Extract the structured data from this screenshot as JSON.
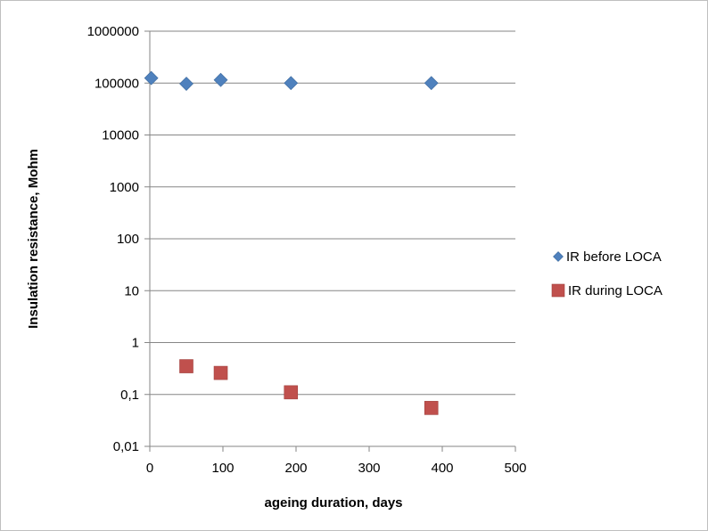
{
  "chart_data": {
    "type": "scatter",
    "xlabel": "ageing duration, days",
    "ylabel": "Insulation resistance, Mohm",
    "x_ticks": [
      "0",
      "100",
      "200",
      "300",
      "400",
      "500"
    ],
    "y_ticks": [
      "0,01",
      "0,1",
      "1",
      "10",
      "100",
      "1000",
      "10000",
      "100000",
      "1000000"
    ],
    "xlim": [
      0,
      500
    ],
    "ylim": [
      0.01,
      1000000
    ],
    "y_scale": "log",
    "grid": "horizontal",
    "legend_position": "right",
    "series": [
      {
        "name": "IR before LOCA",
        "marker": "diamond",
        "color": "#4f81bd",
        "x": [
          2,
          50,
          97,
          193,
          385
        ],
        "y": [
          125000,
          97000,
          115000,
          100000,
          100000
        ]
      },
      {
        "name": "IR during LOCA",
        "marker": "square",
        "color": "#c0504d",
        "x": [
          50,
          97,
          193,
          385
        ],
        "y": [
          0.35,
          0.26,
          0.11,
          0.055
        ]
      }
    ]
  }
}
